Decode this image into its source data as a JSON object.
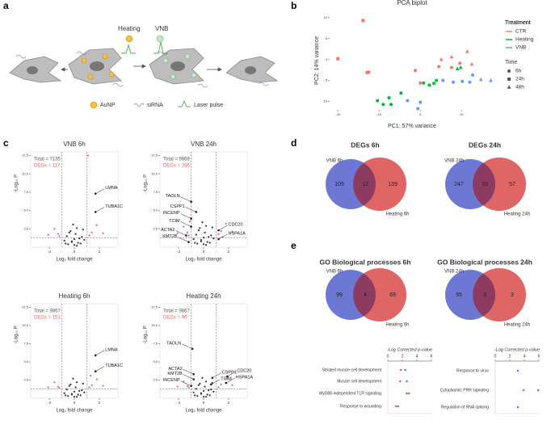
{
  "panel_labels": [
    "a",
    "b",
    "c",
    "d",
    "e"
  ],
  "schematic": {
    "labels": [
      "Heating",
      "VNB"
    ],
    "legend": [
      "AuNP",
      "siRNA",
      "Laser pulse"
    ]
  },
  "chart_data": [
    {
      "type": "pca",
      "title": "PCA biplot",
      "xlabel": "PC1: 57% variance",
      "ylabel": "PC2: 14% variance",
      "xlim": [
        -22,
        18
      ],
      "ylim": [
        -12,
        11.5
      ],
      "xticks": [
        -20,
        -10,
        0,
        10
      ],
      "yticks": [
        -10,
        -5,
        0,
        5,
        10
      ],
      "legend_title": "Treatment",
      "time": {
        "title": "Time",
        "labels": [
          "6h",
          "24h",
          "48h"
        ]
      },
      "series": [
        {
          "name": "CTR",
          "color": "#f8766d",
          "x": [
            -13.9,
            -20,
            -12.9,
            -12.5,
            -1.2,
            0,
            4.5,
            5.1,
            7.6,
            7.6,
            9.6,
            11.4,
            12.5
          ],
          "y": [
            9.3,
            0.2,
            -3.1,
            -3.0,
            -2.6,
            -5.6,
            -1.7,
            0,
            -1.9,
            0.6,
            -0.9,
            1.9,
            -1.1
          ],
          "time": [
            "24h",
            "24h",
            "24h",
            "6h",
            "6h",
            "6h",
            "6h",
            "48h",
            "6h",
            "48h",
            "6h",
            "48h",
            "48h"
          ]
        },
        {
          "name": "Heating",
          "color": "#00ba38",
          "x": [
            -10.4,
            -9,
            -7.6,
            -7.1,
            -4.7,
            0.8,
            2.2,
            3.3,
            3.9,
            9,
            9.8
          ],
          "y": [
            -9.8,
            -10.7,
            -9.1,
            -10.7,
            -8,
            -5.6,
            -6.1,
            -5.7,
            -5,
            -2.2,
            -1.9
          ],
          "time": [
            "6h",
            "6h",
            "6h",
            "6h",
            "6h",
            "6h",
            "6h",
            "6h",
            "6h",
            "48h",
            "48h"
          ]
        },
        {
          "name": "VNB",
          "color": "#619cff",
          "x": [
            -3.1,
            -0.6,
            0,
            5.5,
            8,
            10.2,
            12,
            12.7,
            14.7,
            17.1
          ],
          "y": [
            -9.8,
            -11.7,
            -10.2,
            -5,
            -5.4,
            -5.2,
            -5.4,
            -3.7,
            -4.8,
            -5
          ],
          "time": [
            "6h",
            "6h",
            "6h",
            "6h",
            "6h",
            "6h",
            "6h",
            "6h",
            "48h",
            "48h"
          ]
        }
      ]
    },
    {
      "type": "volcano",
      "title": "VNB 6h",
      "xlabel": "Log₂ fold change",
      "ylabel": "-Log₁₀ P",
      "annotations": [
        {
          "text": "Total = 7135",
          "color": "#555555"
        },
        {
          "text": "DEGs = 117",
          "color": "#e8646a"
        }
      ],
      "xlim": [
        -3.5,
        3.5
      ],
      "ylim": [
        0,
        13
      ],
      "xticks": [
        -2,
        0,
        2
      ],
      "yticks": [
        2.5,
        {
          "value": 5,
          "label": "5.0"
        },
        7.5,
        {
          "value": 10,
          "label": "10.0"
        },
        12.5
      ],
      "thresholds": {
        "x": [
          -1,
          1
        ],
        "y": 1.3
      },
      "points": {
        "color": "#333333",
        "x": [
          -0.8,
          -0.6,
          -0.5,
          -0.3,
          -0.2,
          -0.1,
          0,
          0.1,
          0.2,
          0.3,
          0.4,
          0.5,
          0.6,
          0.8,
          -0.4,
          0.2,
          -0.7,
          0.7,
          0,
          -0.2
        ],
        "y": [
          0.9,
          1.5,
          0.4,
          2.2,
          0.8,
          3.1,
          0.3,
          1.8,
          2.6,
          0.6,
          1.2,
          0.5,
          1.4,
          1.0,
          2.0,
          0.2,
          0.5,
          2.4,
          1.1,
          0.7
        ]
      },
      "sig": {
        "color": "#e8646a",
        "x": [
          -1.3,
          -1.6,
          -1.2,
          1.4,
          1.2,
          1.8,
          -2.1,
          2.3,
          1.1
        ],
        "y": [
          1.8,
          2.5,
          1.5,
          2.0,
          1.6,
          3.0,
          1.7,
          1.9,
          12.5
        ]
      },
      "genes": [
        {
          "label": "LMNA",
          "x": 1.7,
          "y": 7.3
        },
        {
          "label": "TUBA1C",
          "x": 1.7,
          "y": 4.8
        }
      ]
    },
    {
      "type": "volcano",
      "title": "VNB 24h",
      "xlabel": "Log₂ fold change",
      "ylabel": "-Log₁₀ P",
      "annotations": [
        {
          "text": "Total = 9868",
          "color": "#555555"
        },
        {
          "text": "DEGs = 286",
          "color": "#e8646a"
        }
      ],
      "xlim": [
        -3.5,
        3.5
      ],
      "ylim": [
        0,
        13
      ],
      "xticks": [
        -2,
        0,
        2
      ],
      "yticks": [
        2.5,
        {
          "value": 5,
          "label": "5.0"
        },
        7.5,
        {
          "value": 10,
          "label": "10.0"
        },
        12.5
      ],
      "thresholds": {
        "x": [
          -1,
          1
        ],
        "y": 1.3
      },
      "points": {
        "color": "#333333",
        "x": [
          -0.8,
          -0.6,
          -0.5,
          -0.3,
          -0.2,
          -0.1,
          0,
          0.1,
          0.2,
          0.3,
          0.4,
          0.5,
          0.6,
          0.8,
          -0.4,
          0.2,
          -0.7,
          0.7,
          0,
          -0.2
        ],
        "y": [
          1.1,
          1.7,
          0.5,
          2.6,
          1.0,
          3.4,
          0.4,
          2.0,
          2.9,
          0.7,
          1.4,
          0.6,
          1.6,
          1.2,
          2.3,
          0.3,
          0.6,
          2.7,
          1.3,
          0.8
        ]
      },
      "sig": {
        "color": "#e8646a",
        "x": [
          -1.3,
          -1.6,
          -1.2,
          1.4,
          1.2,
          1.8,
          -2.1,
          2.3,
          -1.1,
          1.5
        ],
        "y": [
          2.0,
          2.8,
          1.6,
          2.2,
          1.8,
          3.2,
          1.9,
          2.1,
          3.5,
          1.4
        ]
      },
      "genes": [
        {
          "label": "TAOLN",
          "x": -1,
          "y": 6.2
        },
        {
          "label": "CSPP1",
          "x": -0.6,
          "y": 4.8
        },
        {
          "label": "INCENP",
          "x": -1,
          "y": 3.9
        },
        {
          "label": "TCIM",
          "x": -1,
          "y": 2.8
        },
        {
          "label": "ACTA2",
          "x": -1.4,
          "y": 1.6
        },
        {
          "label": "KMT2B",
          "x": -1.2,
          "y": 0.7
        },
        {
          "label": "CDC20",
          "x": 1.2,
          "y": 2.3
        },
        {
          "label": "HSPA1A",
          "x": 1.2,
          "y": 1.1
        }
      ]
    },
    {
      "type": "volcano",
      "title": "Heating 6h",
      "xlabel": "Log₂ fold change",
      "ylabel": "-Log₁₀ P",
      "annotations": [
        {
          "text": "Total = 9867",
          "color": "#555555"
        },
        {
          "text": "DEGs = 151",
          "color": "#e8646a"
        }
      ],
      "xlim": [
        -3.5,
        3.5
      ],
      "ylim": [
        0,
        13
      ],
      "xticks": [
        -2,
        0,
        2
      ],
      "yticks": [
        2.5,
        {
          "value": 5,
          "label": "5.0"
        },
        7.5,
        {
          "value": 10,
          "label": "10.0"
        },
        12.5
      ],
      "thresholds": {
        "x": [
          -1,
          1
        ],
        "y": 1.3
      },
      "points": {
        "color": "#333333",
        "x": [
          -0.8,
          -0.6,
          -0.5,
          -0.3,
          -0.2,
          -0.1,
          0,
          0.1,
          0.2,
          0.3,
          0.4,
          0.5,
          0.6,
          0.8,
          -0.4,
          0.2,
          -0.7,
          0.7,
          0,
          -0.2
        ],
        "y": [
          0.7,
          1.2,
          0.3,
          1.9,
          0.6,
          2.7,
          0.2,
          1.5,
          2.2,
          0.5,
          1.0,
          0.4,
          1.1,
          0.8,
          1.7,
          0.2,
          0.4,
          2.0,
          0.9,
          0.5
        ]
      },
      "sig": {
        "color": "#e8646a",
        "x": [
          -1.3,
          -1.6,
          -1.2,
          1.4,
          1.2,
          1.8,
          -2.1,
          2.3,
          1.3
        ],
        "y": [
          1.6,
          2.2,
          1.4,
          1.8,
          1.5,
          2.6,
          1.5,
          1.7,
          3.1
        ]
      },
      "genes": [
        {
          "label": "LMNA",
          "x": 1.7,
          "y": 5.9
        },
        {
          "label": "TUBA1C",
          "x": 1.7,
          "y": 3.7
        }
      ]
    },
    {
      "type": "volcano",
      "title": "Heating 24h",
      "xlabel": "Log₂ fold change",
      "ylabel": "-Log₁₀ P",
      "annotations": [
        {
          "text": "Total = 9867",
          "color": "#555555"
        },
        {
          "text": "DEGs = 96",
          "color": "#e8646a"
        }
      ],
      "xlim": [
        -3.5,
        3.5
      ],
      "ylim": [
        0,
        13
      ],
      "xticks": [
        -2,
        0,
        2
      ],
      "yticks": [
        2.5,
        {
          "value": 5,
          "label": "5.0"
        },
        7.5,
        {
          "value": 10,
          "label": "10.0"
        },
        12.5
      ],
      "thresholds": {
        "x": [
          -1,
          1
        ],
        "y": 1.3
      },
      "points": {
        "color": "#333333",
        "x": [
          -0.8,
          -0.6,
          -0.5,
          -0.3,
          -0.2,
          -0.1,
          0,
          0.1,
          0.2,
          0.3,
          0.4,
          0.5,
          0.6,
          0.8,
          -0.4,
          0.2,
          -0.7,
          0.7,
          0,
          -0.2
        ],
        "y": [
          0.8,
          1.3,
          0.3,
          2.0,
          0.7,
          2.8,
          0.2,
          1.6,
          2.3,
          0.5,
          1.1,
          0.4,
          1.2,
          0.9,
          1.8,
          0.2,
          0.4,
          2.1,
          1.0,
          0.6
        ]
      },
      "sig": {
        "color": "#e8646a",
        "x": [
          -1.3,
          -1.6,
          -1.2,
          1.4,
          1.2,
          1.8,
          -2.1,
          2.3
        ],
        "y": [
          1.7,
          2.3,
          1.5,
          1.9,
          1.5,
          2.7,
          1.6,
          1.8
        ]
      },
      "genes": [
        {
          "label": "TAOLN",
          "x": -0.9,
          "y": 6.8
        },
        {
          "label": "ACTA2",
          "x": -0.8,
          "y": 3.3
        },
        {
          "label": "KMT2B",
          "x": -0.8,
          "y": 2.6
        },
        {
          "label": "INCENP",
          "x": -1,
          "y": 1.7
        },
        {
          "label": "CSPP1",
          "x": 0.7,
          "y": 2.8
        },
        {
          "label": "TCIM",
          "x": 0.6,
          "y": 1.9
        },
        {
          "label": "CDC20",
          "x": 1.9,
          "y": 3.0
        },
        {
          "label": "HSPA1A",
          "x": 1.8,
          "y": 2.1
        }
      ]
    },
    {
      "type": "venn",
      "title": "DEGs 6h",
      "sets": [
        {
          "name": "VNB 6h",
          "value": 105,
          "color": "#6d78d4"
        },
        {
          "name": "Heating 6h",
          "value": 139,
          "color": "#e06666"
        }
      ],
      "overlap": 12,
      "overlap_color": "#8e3b62"
    },
    {
      "type": "venn",
      "title": "DEGs 24h",
      "sets": [
        {
          "name": "VNB 24h",
          "value": 247,
          "color": "#6d78d4"
        },
        {
          "name": "Heating 24h",
          "value": 57,
          "color": "#e06666"
        }
      ],
      "overlap": 39,
      "overlap_color": "#8e3b62"
    },
    {
      "type": "venn",
      "title": "GO Biological processes 6h",
      "sets": [
        {
          "name": "VNB 6h",
          "value": 99,
          "color": "#6d78d4"
        },
        {
          "name": "Heating 6h",
          "value": 69,
          "color": "#e06666"
        }
      ],
      "overlap": 4,
      "overlap_color": "#8e3b62"
    },
    {
      "type": "venn",
      "title": "GO Biological processes 24h",
      "sets": [
        {
          "name": "VNB 24h",
          "value": 95,
          "color": "#6d78d4"
        },
        {
          "name": "Heating 24h",
          "value": 3,
          "color": "#e06666"
        }
      ],
      "overlap": 3,
      "overlap_color": "#8e3b62"
    },
    {
      "type": "dot",
      "xlabel": "-Log Corrected p-value",
      "xlim": [
        0,
        6
      ],
      "xticks": [
        0,
        2,
        4,
        6
      ],
      "categories": [
        "Striated muscle cell development",
        "Muscle cell development",
        "MyD88-independent TLR signaling",
        "Response to wounding"
      ],
      "series": [
        {
          "color": "#5b7fe0",
          "values": [
            2.4,
            2.6,
            2.6,
            1.4
          ]
        },
        {
          "color": "#e8646a",
          "values": [
            1.8,
            1.7,
            2.9,
            1.1
          ]
        }
      ]
    },
    {
      "type": "dot",
      "xlabel": "-Log Corrected p-value",
      "xlim": [
        0,
        6
      ],
      "xticks": [
        0,
        2,
        4,
        6
      ],
      "categories": [
        "Response to virus",
        "Cytoplasmic PRR signaling",
        "Regulation of RNA splicing"
      ],
      "series": [
        {
          "color": "#5b7fe0",
          "values": [
            3.1,
            5.9,
            3.1
          ]
        },
        {
          "color": "#e8646a",
          "values": [
            null,
            3.9,
            null
          ]
        }
      ]
    }
  ]
}
